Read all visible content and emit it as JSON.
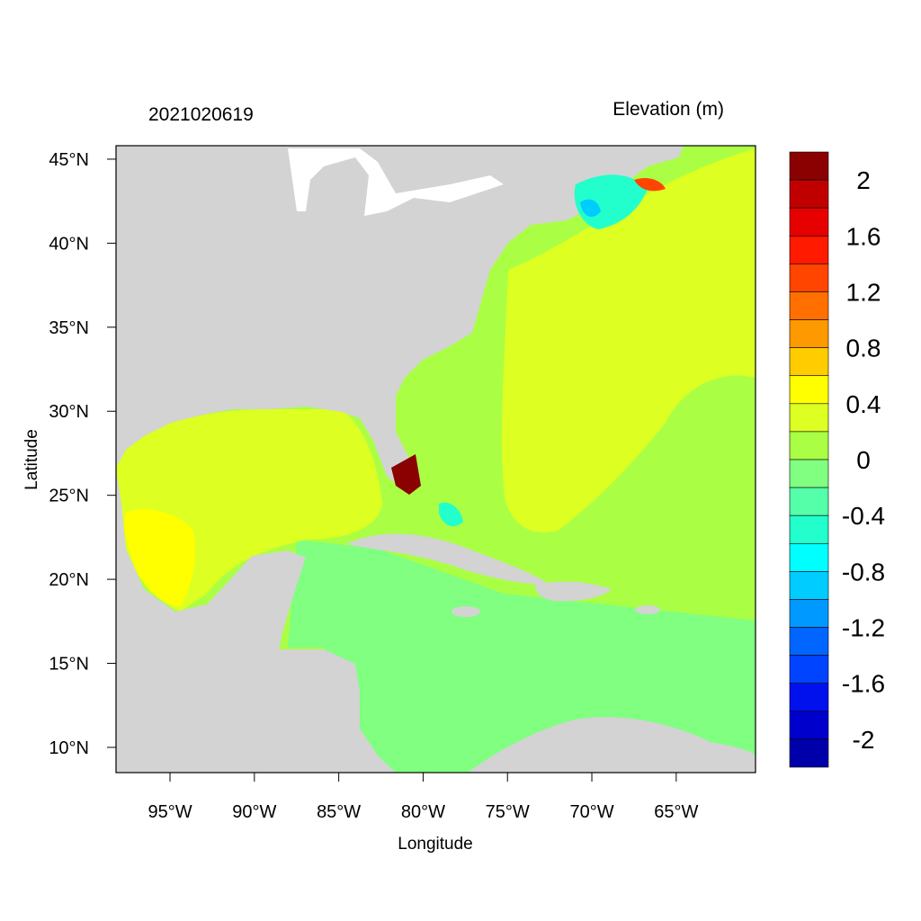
{
  "header": {
    "timestamp": "2021020619",
    "variable_title": "Elevation (m)"
  },
  "axes": {
    "xlabel": "Longitude",
    "ylabel": "Latitude",
    "lon_range": [
      -98.2,
      -60.3
    ],
    "lat_range": [
      8.5,
      45.8
    ],
    "x_ticks": [
      {
        "lon": -95,
        "label": "95°W"
      },
      {
        "lon": -90,
        "label": "90°W"
      },
      {
        "lon": -85,
        "label": "85°W"
      },
      {
        "lon": -80,
        "label": "80°W"
      },
      {
        "lon": -75,
        "label": "75°W"
      },
      {
        "lon": -70,
        "label": "70°W"
      },
      {
        "lon": -65,
        "label": "65°W"
      }
    ],
    "y_ticks": [
      {
        "lat": 45,
        "label": "45°N"
      },
      {
        "lat": 40,
        "label": "40°N"
      },
      {
        "lat": 35,
        "label": "35°N"
      },
      {
        "lat": 30,
        "label": "30°N"
      },
      {
        "lat": 25,
        "label": "25°N"
      },
      {
        "lat": 20,
        "label": "20°N"
      },
      {
        "lat": 15,
        "label": "15°N"
      },
      {
        "lat": 10,
        "label": "10°N"
      }
    ]
  },
  "colorbar": {
    "colors_top_to_bottom": [
      "#8b0000",
      "#c00000",
      "#e60000",
      "#ff1a00",
      "#ff4500",
      "#ff7000",
      "#ff9900",
      "#ffcc00",
      "#ffff00",
      "#ddff22",
      "#aaff44",
      "#80ff80",
      "#55ffaa",
      "#22ffcc",
      "#00ffff",
      "#00ccff",
      "#0099ff",
      "#0066ff",
      "#0044ff",
      "#0011ee",
      "#0000cc",
      "#0000aa"
    ],
    "tick_labels": [
      "2",
      "1.6",
      "1.2",
      "0.8",
      "0.4",
      "0",
      "-0.4",
      "-0.8",
      "-1.2",
      "-1.6",
      "-2"
    ]
  },
  "map_colors": {
    "land": "#d3d3d3",
    "open_ocean": "#aaff44",
    "shelf_high": "#ddff22",
    "gulf_shelf": "#ffff00",
    "caribbean": "#80ff80",
    "surge_max": "#8b0000",
    "surge_high": "#ff4500",
    "negative": "#22ffcc",
    "negative_low": "#00ccff",
    "negative_min": "#0044ff"
  }
}
